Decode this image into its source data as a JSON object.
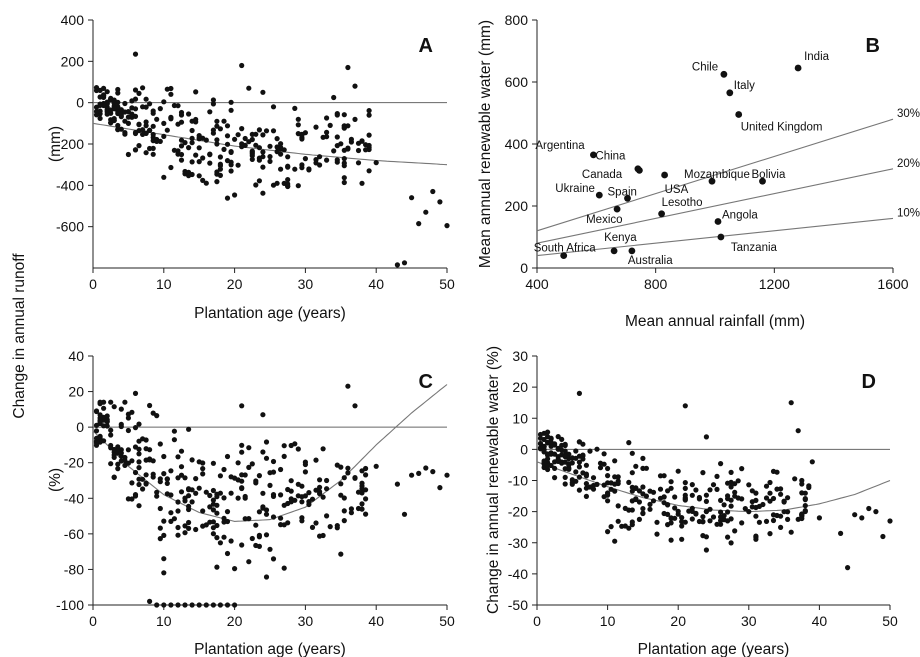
{
  "figure": {
    "shared_ylabel": "Change in annual runoff"
  },
  "chart_data": [
    {
      "id": "A",
      "type": "scatter",
      "panel_label": "A",
      "xlabel": "Plantation age (years)",
      "ylabel": "(mm)",
      "xlim": [
        0,
        50
      ],
      "ylim": [
        -800,
        400
      ],
      "xticks": [
        0,
        10,
        20,
        30,
        40,
        50
      ],
      "yticks": [
        400,
        200,
        0,
        -200,
        -400,
        -600
      ],
      "reference_line": 0,
      "fit_curve": [
        [
          0,
          -100
        ],
        [
          10,
          -155
        ],
        [
          20,
          -210
        ],
        [
          30,
          -250
        ],
        [
          40,
          -280
        ],
        [
          50,
          -300
        ]
      ],
      "outliers": [
        [
          6,
          235
        ],
        [
          21,
          180
        ],
        [
          24,
          50
        ],
        [
          36,
          170
        ],
        [
          37,
          80
        ],
        [
          39,
          -60
        ],
        [
          40,
          -290
        ],
        [
          43,
          -785
        ],
        [
          44,
          -775
        ],
        [
          45,
          -460
        ],
        [
          46,
          -585
        ],
        [
          47,
          -530
        ],
        [
          48,
          -430
        ],
        [
          49,
          -480
        ],
        [
          50,
          -595
        ]
      ],
      "cloud": {
        "x_range": [
          0.5,
          39
        ],
        "points": 330,
        "center": [
          [
            0,
            20
          ],
          [
            10,
            -150
          ],
          [
            20,
            -210
          ],
          [
            30,
            -220
          ],
          [
            38,
            -200
          ]
        ],
        "spread": [
          [
            0,
            40
          ],
          [
            10,
            140
          ],
          [
            20,
            150
          ],
          [
            30,
            150
          ],
          [
            38,
            120
          ]
        ],
        "min": -560,
        "max": 95
      }
    },
    {
      "id": "B",
      "type": "scatter",
      "panel_label": "B",
      "xlabel": "Mean annual rainfall (mm)",
      "ylabel": "Mean annual renewable water (mm)",
      "xlim": [
        400,
        1600
      ],
      "ylim": [
        0,
        800
      ],
      "xticks": [
        400,
        800,
        1200,
        1600
      ],
      "yticks": [
        0,
        200,
        400,
        600,
        800
      ],
      "points": [
        {
          "name": "India",
          "x": 1280,
          "y": 645
        },
        {
          "name": "Chile",
          "x": 1030,
          "y": 625
        },
        {
          "name": "Italy",
          "x": 1050,
          "y": 565
        },
        {
          "name": "United Kingdom",
          "x": 1080,
          "y": 495
        },
        {
          "name": "Argentina",
          "x": 590,
          "y": 365
        },
        {
          "name": "China",
          "x": 745,
          "y": 315
        },
        {
          "name": "Canada",
          "x": 740,
          "y": 320
        },
        {
          "name": "USA",
          "x": 830,
          "y": 300
        },
        {
          "name": "Mozambique",
          "x": 990,
          "y": 280
        },
        {
          "name": "Bolivia",
          "x": 1160,
          "y": 280
        },
        {
          "name": "Ukraine",
          "x": 610,
          "y": 235
        },
        {
          "name": "Spain",
          "x": 705,
          "y": 225
        },
        {
          "name": "Mexico",
          "x": 670,
          "y": 190
        },
        {
          "name": "Lesotho",
          "x": 820,
          "y": 175
        },
        {
          "name": "Angola",
          "x": 1010,
          "y": 150
        },
        {
          "name": "Tanzania",
          "x": 1020,
          "y": 100
        },
        {
          "name": "Kenya",
          "x": 660,
          "y": 55
        },
        {
          "name": "Australia",
          "x": 720,
          "y": 55
        },
        {
          "name": "South Africa",
          "x": 490,
          "y": 40
        }
      ],
      "ratio_lines": [
        {
          "label": "30%",
          "x0": 400,
          "y0": 120,
          "x1": 1600,
          "y1": 480
        },
        {
          "label": "20%",
          "x0": 400,
          "y0": 80,
          "x1": 1600,
          "y1": 320
        },
        {
          "label": "10%",
          "x0": 400,
          "y0": 40,
          "x1": 1600,
          "y1": 160
        }
      ]
    },
    {
      "id": "C",
      "type": "scatter",
      "panel_label": "C",
      "xlabel": "Plantation age (years)",
      "ylabel": "(%)",
      "xlim": [
        0,
        50
      ],
      "ylim": [
        -100,
        40
      ],
      "xticks": [
        0,
        10,
        20,
        30,
        40,
        50
      ],
      "yticks": [
        40,
        20,
        0,
        -20,
        -40,
        -60,
        -80,
        -100
      ],
      "reference_line": 0,
      "fit_curve": [
        [
          0,
          -2
        ],
        [
          5,
          -22
        ],
        [
          10,
          -38
        ],
        [
          15,
          -48
        ],
        [
          20,
          -53
        ],
        [
          25,
          -52
        ],
        [
          30,
          -45
        ],
        [
          35,
          -30
        ],
        [
          40,
          -10
        ],
        [
          45,
          8
        ],
        [
          50,
          24
        ]
      ],
      "floor_points": [
        [
          8,
          -98
        ],
        [
          9,
          -100
        ],
        [
          10,
          -100
        ],
        [
          11,
          -100
        ],
        [
          12,
          -100
        ],
        [
          13,
          -100
        ],
        [
          14,
          -100
        ],
        [
          15,
          -100
        ],
        [
          16,
          -100
        ],
        [
          17,
          -100
        ],
        [
          18,
          -100
        ],
        [
          19,
          -100
        ],
        [
          20,
          -100
        ]
      ],
      "outliers": [
        [
          6,
          19
        ],
        [
          21,
          12
        ],
        [
          24,
          7
        ],
        [
          36,
          23
        ],
        [
          37,
          12
        ],
        [
          38,
          -37
        ],
        [
          40,
          -22
        ],
        [
          43,
          -32
        ],
        [
          44,
          -49
        ],
        [
          45,
          -27
        ],
        [
          46,
          -26
        ],
        [
          47,
          -23
        ],
        [
          48,
          -25
        ],
        [
          49,
          -34
        ],
        [
          50,
          -27
        ]
      ],
      "cloud": {
        "x_range": [
          0.5,
          39
        ],
        "points": 330,
        "center": [
          [
            0,
            5
          ],
          [
            10,
            -35
          ],
          [
            20,
            -45
          ],
          [
            30,
            -40
          ],
          [
            38,
            -35
          ]
        ],
        "spread": [
          [
            0,
            10
          ],
          [
            10,
            25
          ],
          [
            20,
            22
          ],
          [
            30,
            20
          ],
          [
            38,
            18
          ]
        ],
        "min": -98,
        "max": 14
      }
    },
    {
      "id": "D",
      "type": "scatter",
      "panel_label": "D",
      "xlabel": "Plantation age (years)",
      "ylabel": "Change in annual renewable water (%)",
      "xlim": [
        0,
        50
      ],
      "ylim": [
        -50,
        30
      ],
      "xticks": [
        0,
        10,
        20,
        30,
        40,
        50
      ],
      "yticks": [
        30,
        20,
        10,
        0,
        -10,
        -20,
        -30,
        -40,
        -50
      ],
      "reference_line": 0,
      "fit_curve": [
        [
          0,
          -4
        ],
        [
          5,
          -8
        ],
        [
          10,
          -12
        ],
        [
          15,
          -15.5
        ],
        [
          20,
          -18
        ],
        [
          25,
          -19.5
        ],
        [
          30,
          -20
        ],
        [
          35,
          -19.5
        ],
        [
          40,
          -17.5
        ],
        [
          45,
          -14.5
        ],
        [
          50,
          -10
        ]
      ],
      "outliers": [
        [
          6,
          18
        ],
        [
          21,
          14
        ],
        [
          24,
          4
        ],
        [
          36,
          15
        ],
        [
          37,
          6
        ],
        [
          39,
          -4
        ],
        [
          40,
          -22
        ],
        [
          43,
          -27
        ],
        [
          44,
          -38
        ],
        [
          45,
          -21
        ],
        [
          46,
          -22
        ],
        [
          47,
          -19
        ],
        [
          48,
          -20
        ],
        [
          49,
          -28
        ],
        [
          50,
          -23
        ]
      ],
      "cloud": {
        "x_range": [
          0.5,
          39
        ],
        "points": 330,
        "center": [
          [
            0,
            1
          ],
          [
            10,
            -12
          ],
          [
            20,
            -18
          ],
          [
            30,
            -19
          ],
          [
            38,
            -17
          ]
        ],
        "spread": [
          [
            0,
            3
          ],
          [
            10,
            8
          ],
          [
            20,
            8
          ],
          [
            30,
            7
          ],
          [
            38,
            6
          ]
        ],
        "min": -40,
        "max": 6
      }
    }
  ]
}
